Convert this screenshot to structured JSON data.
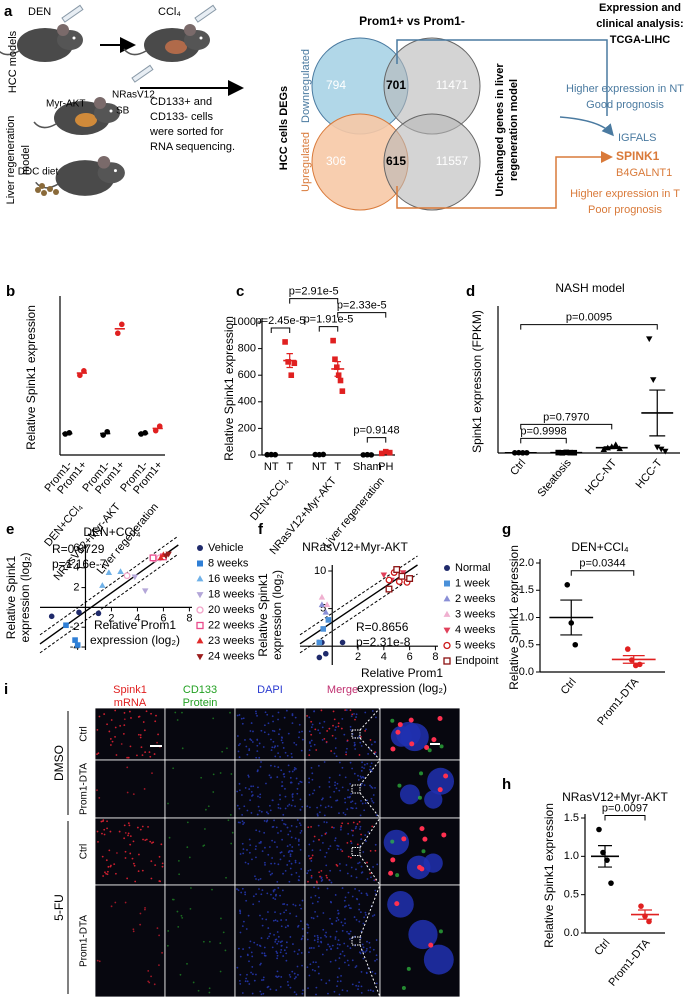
{
  "panel_a": {
    "label": "a",
    "den": "DEN",
    "ccl4": "CCl₄",
    "hcc_models": "HCC models",
    "nras": "NRasV12",
    "myr_akt": "Myr-AKT",
    "sb": "SB",
    "liver_model": [
      "Liver regeneration",
      "model"
    ],
    "ddc_diet": "DDC diet",
    "sorting": [
      "CD133+ and",
      "CD133- cells",
      "were sorted for",
      "RNA sequencing."
    ],
    "degs": "HCC cells DEGs",
    "comparison": "Prom1+ vs Prom1-",
    "downregulated": "Downregulated",
    "down_counts": [
      794,
      701,
      11471
    ],
    "upregulated": "Upregulated",
    "up_counts": [
      306,
      615,
      11557
    ],
    "unchanged": [
      "Unchanged genes in liver",
      "regeneration model"
    ],
    "analysis": [
      "Expression and",
      "clinical analysis:",
      "TCGA-LIHC"
    ],
    "nt_lines": [
      "Higher expression in NT",
      "Good prognosis"
    ],
    "igfals": "IGFALS",
    "spink1": "SPINK1",
    "b4galnt1": "B4GALNT1",
    "t_lines": [
      "Higher expression in T",
      "Poor prognosis"
    ]
  },
  "chart_data": [
    {
      "label": "b",
      "type": "dot",
      "ylabel": "Relative Spink1 expression",
      "ylim": [
        0,
        7
      ],
      "groups": [
        {
          "name": "DEN+CCl₄",
          "categories": [
            {
              "name": "Prom1-",
              "color": "#000000",
              "shape": "circle",
              "values": [
                0.95,
                1.0
              ],
              "mean": 0.97
            },
            {
              "name": "Prom1+",
              "color": "#e02020",
              "shape": "circle",
              "values": [
                3.6,
                3.8
              ],
              "mean": 3.7
            }
          ]
        },
        {
          "name": "NRasV12+Myr-AKT",
          "categories": [
            {
              "name": "Prom1-",
              "color": "#000000",
              "shape": "circle",
              "values": [
                0.9,
                1.05
              ],
              "mean": 0.97
            },
            {
              "name": "Prom1+",
              "color": "#e02020",
              "shape": "circle",
              "values": [
                5.5,
                5.9
              ],
              "mean": 5.7
            }
          ]
        },
        {
          "name": "Liver regeneration",
          "categories": [
            {
              "name": "Prom1-",
              "color": "#000000",
              "shape": "circle",
              "values": [
                0.95,
                1.0
              ],
              "mean": 0.97
            },
            {
              "name": "Prom1+",
              "color": "#e02020",
              "shape": "circle",
              "values": [
                1.1,
                1.3
              ],
              "mean": 1.2
            }
          ]
        }
      ]
    },
    {
      "label": "c",
      "type": "dot",
      "ylabel": "Relative Spink1 expression",
      "ylim": [
        0,
        1000
      ],
      "yticks": [
        0,
        200,
        400,
        600,
        800,
        1000
      ],
      "groups": [
        {
          "name": "DEN+CCl₄",
          "categories": [
            {
              "name": "NT",
              "color": "#000000",
              "shape": "circle",
              "values": [
                2,
                3,
                2
              ],
              "mean": 2,
              "sem": 0.5
            },
            {
              "name": "T",
              "color": "#e02020",
              "shape": "square",
              "values": [
                850,
                700,
                600,
                690
              ],
              "mean": 710,
              "sem": 52
            }
          ]
        },
        {
          "name": "NRasV12+Myr-AKT",
          "categories": [
            {
              "name": "NT",
              "color": "#000000",
              "shape": "circle",
              "values": [
                3,
                2,
                4
              ],
              "mean": 3,
              "sem": 0.6
            },
            {
              "name": "T",
              "color": "#e02020",
              "shape": "square",
              "values": [
                860,
                720,
                660,
                600,
                560,
                480
              ],
              "mean": 647,
              "sem": 55
            }
          ]
        },
        {
          "name": "Liver regeneration",
          "categories": [
            {
              "name": "Sham",
              "color": "#000000",
              "shape": "circle",
              "values": [
                1,
                2,
                1
              ],
              "mean": 1.3,
              "sem": 0.3
            },
            {
              "name": "PH",
              "color": "#e02020",
              "shape": "square",
              "values": [
                12,
                25,
                18
              ],
              "mean": 18,
              "sem": 4
            }
          ]
        }
      ],
      "pvalues": [
        {
          "label": "p=0.9148",
          "between": [
            4,
            5
          ]
        },
        {
          "label": "p=2.45e-5",
          "between": [
            0,
            1
          ]
        },
        {
          "label": "p=1.91e-5",
          "between": [
            2,
            3
          ]
        },
        {
          "label": "p=2.33e-5",
          "between": [
            3,
            5
          ]
        },
        {
          "label": "p=2.91e-5",
          "between": [
            1,
            3
          ]
        }
      ]
    },
    {
      "label": "d",
      "type": "dot",
      "title": "NASH model",
      "ylabel": "Spink1 expression (FPKM)",
      "ylim": [
        0,
        350
      ],
      "groups": [
        {
          "categories": [
            {
              "name": "Ctrl",
              "color": "#000000",
              "shape": "circle",
              "values": [
                0.5,
                0.8,
                0.4,
                0.6
              ],
              "mean": 0.6,
              "sem": 0.1
            },
            {
              "name": "Steatosis",
              "color": "#000000",
              "shape": "square",
              "values": [
                1,
                0.5,
                1.5,
                0.8,
                0.7
              ],
              "mean": 0.9,
              "sem": 0.2
            },
            {
              "name": "HCC-NT",
              "color": "#000000",
              "shape": "triangle",
              "values": [
                8,
                12,
                15,
                20,
                10
              ],
              "mean": 13,
              "sem": 2
            },
            {
              "name": "HCC-T",
              "color": "#000000",
              "shape": "triangle-down",
              "values": [
                280,
                180,
                15,
                10,
                5
              ],
              "mean": 98,
              "sem": 56
            }
          ]
        }
      ],
      "pvalues": [
        {
          "label": "p=0.9998",
          "between": [
            0,
            1
          ]
        },
        {
          "label": "p=0.7970",
          "between": [
            0,
            2
          ]
        },
        {
          "label": "p=0.0095",
          "between": [
            0,
            3
          ]
        }
      ]
    },
    {
      "label": "e",
      "type": "scatter",
      "title": "DEN+CCl₄",
      "ylabel": [
        "Relative Spink1",
        "expression (log₂)"
      ],
      "xlabel": [
        "Relative Prom1",
        "expression (log₂)"
      ],
      "xlim": [
        -3.5,
        8.2
      ],
      "ylim": [
        -4.3,
        6.3
      ],
      "xticks": [
        2,
        4,
        6,
        8
      ],
      "yticks": [
        -4,
        -2,
        2,
        4,
        6
      ],
      "annotations": [
        "R=0.8729",
        "p=1.16e-7"
      ],
      "series": [
        {
          "name": "Vehicle",
          "color": "#1f2a6b",
          "shape": "circle",
          "x": [
            -2.6,
            1.0,
            -0.5
          ],
          "y": [
            -0.9,
            -0.6,
            -0.5
          ]
        },
        {
          "name": "8 weeks",
          "color": "#2f7fd6",
          "shape": "square",
          "x": [
            -0.8,
            -0.6,
            -1.5
          ],
          "y": [
            -3.3,
            -3.8,
            -1.8
          ]
        },
        {
          "name": "16 weeks",
          "color": "#6fb1e8",
          "shape": "triangle",
          "x": [
            1.8,
            2.7,
            1.3
          ],
          "y": [
            3.5,
            3.6,
            2.2
          ]
        },
        {
          "name": "18 weeks",
          "color": "#b3a6d8",
          "shape": "triangle-down",
          "x": [
            4.6,
            3.8
          ],
          "y": [
            1.7,
            3.1
          ]
        },
        {
          "name": "20 weeks",
          "color": "#f2a3c8",
          "shape": "circle-open",
          "x": [
            3.2,
            5.3,
            5.7
          ],
          "y": [
            3.2,
            4.9,
            5.0
          ]
        },
        {
          "name": "22 weeks",
          "color": "#e94a8c",
          "shape": "square-open",
          "x": [
            5.2,
            6.0
          ],
          "y": [
            5.0,
            5.1
          ]
        },
        {
          "name": "23 weeks",
          "color": "#e02a2a",
          "shape": "triangle",
          "x": [
            6.0,
            5.8
          ],
          "y": [
            5.3,
            5.0
          ]
        },
        {
          "name": "24 weeks",
          "color": "#9b1c1c",
          "shape": "triangle-down",
          "x": [
            6.4,
            6.2
          ],
          "y": [
            5.4,
            5.2
          ]
        }
      ]
    },
    {
      "label": "f",
      "type": "scatter",
      "title": "NRasV12+Myr-AKT",
      "ylabel": [
        "Relative Spink1",
        "expression (log₂)"
      ],
      "xlabel": [
        "Relative Prom1",
        "expression (log₂)"
      ],
      "xlim": [
        -2.5,
        8.2
      ],
      "ylim": [
        -2.5,
        10.8
      ],
      "xticks": [
        2,
        4,
        6,
        8
      ],
      "yticks": [
        5,
        10
      ],
      "annotations": [
        "R=0.8656",
        "p=2.31e-8"
      ],
      "series": [
        {
          "name": "Normal",
          "color": "#1f2a6b",
          "shape": "circle",
          "x": [
            -1,
            -0.5,
            0.8,
            -0.8
          ],
          "y": [
            -1.5,
            -1.0,
            0.5,
            0.5
          ]
        },
        {
          "name": "1 week",
          "color": "#4a90d9",
          "shape": "square",
          "x": [
            -0.7,
            -0.3,
            -1
          ],
          "y": [
            2.3,
            3.5,
            0.5
          ]
        },
        {
          "name": "2 weeks",
          "color": "#8a8fd6",
          "shape": "triangle",
          "x": [
            -0.5,
            -0.8
          ],
          "y": [
            4.5,
            5.5
          ]
        },
        {
          "name": "3 weeks",
          "color": "#f0b0d0",
          "shape": "triangle",
          "x": [
            -0.4,
            -0.8
          ],
          "y": [
            5.5,
            6.5
          ]
        },
        {
          "name": "4 weeks",
          "color": "#e0405a",
          "shape": "triangle-down",
          "x": [
            4,
            4.6,
            5.5
          ],
          "y": [
            9.5,
            8.8,
            9.8
          ]
        },
        {
          "name": "5 weeks",
          "color": "#cc1a1a",
          "shape": "circle-open",
          "x": [
            4.8,
            5.2,
            5.8,
            4.4
          ],
          "y": [
            9.8,
            8.6,
            8.5,
            8.8
          ]
        },
        {
          "name": "Endpoint",
          "color": "#8b1010",
          "shape": "square-open",
          "x": [
            5,
            4.4,
            5.4,
            6
          ],
          "y": [
            10.2,
            7.6,
            9.3,
            9
          ]
        }
      ]
    },
    {
      "label": "g",
      "type": "dot",
      "title": "DEN+CCl₄",
      "ylabel": "Relative Spink1 expression",
      "ylim": [
        0,
        2
      ],
      "yticks": [
        {
          "value": 0,
          "label": "0.0"
        },
        {
          "value": 0.5,
          "label": "0.5"
        },
        {
          "value": 1,
          "label": "1.0"
        },
        {
          "value": 1.5,
          "label": "1.5"
        },
        {
          "value": 2,
          "label": "2.0"
        }
      ],
      "groups": [
        {
          "categories": [
            {
              "name": "Ctrl",
              "color": "#000000",
              "shape": "circle",
              "values": [
                1.6,
                0.9,
                0.5
              ],
              "mean": 1.0,
              "sem": 0.32
            },
            {
              "name": "Prom1-DTA",
              "color": "#e02020",
              "shape": "circle",
              "values": [
                0.42,
                0.22,
                0.12,
                0.14
              ],
              "mean": 0.23,
              "sem": 0.07
            }
          ]
        }
      ],
      "pvalues": [
        {
          "label": "p=0.0344",
          "between": [
            0,
            1
          ]
        }
      ]
    },
    {
      "label": "h",
      "type": "dot",
      "title": "NRasV12+Myr-AKT",
      "ylabel": "Relative Spink1 expression",
      "ylim": [
        0,
        1.5
      ],
      "yticks": [
        {
          "value": 0,
          "label": "0.0"
        },
        {
          "value": 0.5,
          "label": "0.5"
        },
        {
          "value": 1,
          "label": "1.0"
        },
        {
          "value": 1.5,
          "label": "1.5"
        }
      ],
      "groups": [
        {
          "categories": [
            {
              "name": "Ctrl",
              "color": "#000000",
              "shape": "circle",
              "values": [
                1.35,
                1.05,
                0.95,
                0.65
              ],
              "mean": 1.0,
              "sem": 0.14
            },
            {
              "name": "Prom1-DTA",
              "color": "#e02020",
              "shape": "circle",
              "values": [
                0.35,
                0.22,
                0.15
              ],
              "mean": 0.24,
              "sem": 0.06
            }
          ]
        }
      ],
      "pvalues": [
        {
          "label": "p=0.0097",
          "between": [
            0,
            1
          ]
        }
      ]
    }
  ],
  "panel_i": {
    "label": "i",
    "columns": [
      {
        "lines": [
          "Spink1",
          "mRNA"
        ],
        "color": "#e02020"
      },
      {
        "lines": [
          "CD133",
          "Protein"
        ],
        "color": "#22a022"
      },
      {
        "lines": [
          "DAPI"
        ],
        "color": "#2a3ad0"
      },
      {
        "lines": [
          "Merge"
        ],
        "color": "#c03070"
      }
    ],
    "treatments": [
      {
        "name": "DMSO",
        "rows": [
          "Ctrl",
          "Prom1-DTA"
        ]
      },
      {
        "name": "5-FU",
        "rows": [
          "Ctrl",
          "Prom1-DTA"
        ]
      }
    ]
  }
}
